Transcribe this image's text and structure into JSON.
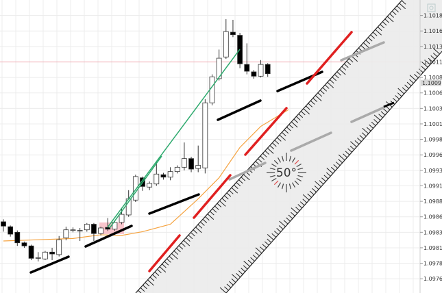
{
  "chart_data": {
    "type": "candlestick",
    "ylim": [
      1.09737,
      1.1021
    ],
    "grid": true,
    "y_ticks": [
      "1.10185",
      "1.10160",
      "1.10135",
      "1.10110",
      "1.10085",
      "1.10060",
      "1.10035",
      "1.10010",
      "1.09985",
      "1.09960",
      "1.09935",
      "1.09910",
      "1.09885",
      "1.09860",
      "1.09835",
      "1.09810",
      "1.09785",
      "1.09760"
    ],
    "candles": [
      [
        1.09852,
        1.09856,
        1.09836,
        1.09845
      ],
      [
        1.09844,
        1.09846,
        1.09828,
        1.09832
      ],
      [
        1.09835,
        1.09838,
        1.09813,
        1.09818
      ],
      [
        1.09818,
        1.0982,
        1.0981,
        1.09813
      ],
      [
        1.09813,
        1.09815,
        1.0979,
        1.09793
      ],
      [
        1.09793,
        1.09803,
        1.09788,
        1.09794
      ],
      [
        1.09792,
        1.09805,
        1.0979,
        1.09803
      ],
      [
        1.09803,
        1.0981,
        1.0979,
        1.098
      ],
      [
        1.09799,
        1.09829,
        1.09796,
        1.09823
      ],
      [
        1.09826,
        1.09844,
        1.09822,
        1.09839
      ],
      [
        1.09839,
        1.09843,
        1.09835,
        1.09839
      ],
      [
        1.09837,
        1.09842,
        1.09821,
        1.09838
      ],
      [
        1.09839,
        1.0985,
        1.09836,
        1.09848
      ],
      [
        1.09848,
        1.0985,
        1.09821,
        1.09833
      ],
      [
        1.09833,
        1.09844,
        1.0983,
        1.09842
      ],
      [
        1.09843,
        1.09858,
        1.09837,
        1.0984
      ],
      [
        1.0984,
        1.09853,
        1.09837,
        1.09851
      ],
      [
        1.09851,
        1.09873,
        1.09848,
        1.09864
      ],
      [
        1.09863,
        1.09903,
        1.0986,
        1.09889
      ],
      [
        1.09887,
        1.09928,
        1.09884,
        1.09925
      ],
      [
        1.09923,
        1.09925,
        1.09902,
        1.09909
      ],
      [
        1.09908,
        1.09917,
        1.09903,
        1.09914
      ],
      [
        1.09913,
        1.09949,
        1.0991,
        1.09929
      ],
      [
        1.09928,
        1.09931,
        1.0992,
        1.09924
      ],
      [
        1.09924,
        1.0994,
        1.09919,
        1.09933
      ],
      [
        1.09933,
        1.09943,
        1.0993,
        1.0994
      ],
      [
        1.0994,
        1.0998,
        1.09935,
        1.09954
      ],
      [
        1.09954,
        1.09957,
        1.09932,
        1.09937
      ],
      [
        1.09938,
        1.09975,
        1.09932,
        1.09943
      ],
      [
        1.09939,
        1.1005,
        1.0993,
        1.10044
      ],
      [
        1.10044,
        1.1009,
        1.1004,
        1.10086
      ],
      [
        1.10083,
        1.1013,
        1.1008,
        1.10116
      ],
      [
        1.10118,
        1.10179,
        1.10115,
        1.10159
      ],
      [
        1.10158,
        1.10178,
        1.1015,
        1.10154
      ],
      [
        1.10153,
        1.10157,
        1.101,
        1.10107
      ],
      [
        1.10106,
        1.1014,
        1.1009,
        1.10095
      ],
      [
        1.10094,
        1.10097,
        1.10083,
        1.10087
      ],
      [
        1.10087,
        1.10113,
        1.10085,
        1.10106
      ],
      [
        1.10106,
        1.10108,
        1.10086,
        1.10091
      ]
    ],
    "moving_average": [
      [
        0,
        1.09821
      ],
      [
        5,
        1.09823
      ],
      [
        10,
        1.09825
      ],
      [
        14,
        1.09831
      ],
      [
        17,
        1.0983
      ],
      [
        20,
        1.09836
      ],
      [
        24,
        1.09848
      ],
      [
        28,
        1.09889
      ],
      [
        31,
        1.09923
      ],
      [
        34,
        1.09972
      ],
      [
        37,
        1.10006
      ],
      [
        41,
        1.10033
      ]
    ],
    "horizontal_line": 1.1011,
    "current_price": "1.10091",
    "colors": {
      "up": "#ffffff",
      "down": "#000000",
      "moving_average": "#f5a340",
      "horizontal_line": "#f0a0a8",
      "trend": "#2eaa6e",
      "ruler_mark": "#e02020"
    }
  },
  "ruler": {
    "angle_label": "50°"
  },
  "toolbar": {
    "corner_icon": "chart-settings-icon"
  }
}
